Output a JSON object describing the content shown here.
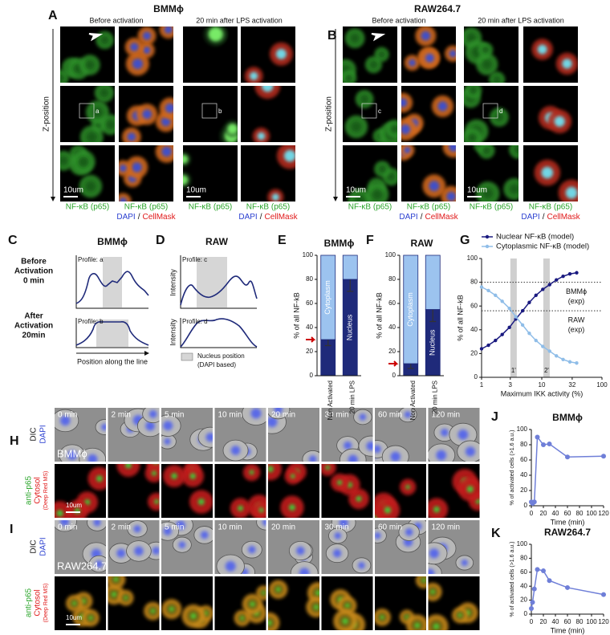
{
  "panel_labels": [
    "A",
    "B",
    "C",
    "D",
    "E",
    "F",
    "G",
    "H",
    "I",
    "J",
    "K"
  ],
  "microscopy": {
    "before": "Before activation",
    "after": "20 min after LPS activation",
    "z": "Z-position",
    "scale": "10um",
    "nfkb": "NF-κB (p65)",
    "dapi": "DAPI",
    "slash": "/",
    "cellmask": "CellMask"
  },
  "panel_a": {
    "title": "BMMϕ",
    "roi": [
      "a",
      "b"
    ]
  },
  "panel_b": {
    "title": "RAW264.7",
    "roi": [
      "c",
      "d"
    ]
  },
  "panel_c": {
    "title": "BMMϕ",
    "row1": [
      "Before",
      "Activation",
      "0 min"
    ],
    "row2": [
      "After",
      "Activation",
      "20min"
    ],
    "profiles": [
      "Profile: a",
      "Profile: b"
    ],
    "x_label": "Position along the line"
  },
  "panel_d": {
    "title": "RAW",
    "profiles": [
      "Profile: c",
      "Profile: d"
    ],
    "y_label": "Intensity",
    "legend": [
      "Nucleus position",
      "(DAPI based)"
    ]
  },
  "time_course": {
    "times": [
      "0 min",
      "2 min",
      "5 min",
      "10 min",
      "20 min",
      "30 min",
      "60 min",
      "120 min"
    ],
    "dic": "DIC",
    "dapi": "DAPI",
    "anti_p65": "anti-p65",
    "cytosol": "Cytosol",
    "deep_red": "(Deep Red MS)",
    "scale": "10um"
  },
  "panel_h": {
    "cell": "BMMϕ"
  },
  "panel_i": {
    "cell": "RAW264.7"
  },
  "chart_data": [
    {
      "type": "stacked_bar",
      "title": "BMMϕ",
      "y_label": "% of all NF-kB",
      "categories": [
        "Non Activated",
        "20 min LPS"
      ],
      "series": [
        {
          "name": "Nucleus",
          "color": "#1f2a7a",
          "values": [
            30,
            80
          ],
          "errors": [
            5,
            10
          ]
        },
        {
          "name": "Cytoplasm",
          "color": "#9cc3ef",
          "values": [
            70,
            20
          ]
        }
      ],
      "ylim": [
        0,
        100
      ],
      "yticks": [
        0,
        20,
        40,
        60,
        80,
        100
      ]
    },
    {
      "type": "stacked_bar",
      "title": "RAW",
      "y_label": "% of all NF-kB",
      "categories": [
        "Non Activated",
        "20 min LPS"
      ],
      "series": [
        {
          "name": "Nucleus",
          "color": "#1f2a7a",
          "values": [
            10,
            55
          ],
          "errors": [
            4,
            10
          ]
        },
        {
          "name": "Cytoplasm",
          "color": "#9cc3ef",
          "values": [
            90,
            45
          ]
        }
      ],
      "ylim": [
        0,
        100
      ],
      "yticks": [
        0,
        20,
        40,
        60,
        80,
        100
      ]
    },
    {
      "type": "line",
      "x_label": "Maximum IKK activity (%)",
      "y_label": "% of all NF-kB",
      "log_x": true,
      "markers": true,
      "legend": true,
      "x": [
        1,
        1.3,
        1.7,
        2.2,
        2.9,
        3.7,
        4.8,
        6.2,
        8,
        10.4,
        13.5,
        17.5,
        22.6,
        29.3,
        38
      ],
      "series": [
        {
          "name": "Nuclear NF-κB (model)",
          "color": "#1a1a80",
          "values": [
            24,
            27,
            31,
            36,
            42,
            49,
            56,
            63,
            69,
            74,
            78,
            82,
            85,
            87,
            88
          ]
        },
        {
          "name": "Cytoplasmic NF-κB (model)",
          "color": "#8fbde8",
          "values": [
            76,
            73,
            69,
            64,
            58,
            51,
            44,
            37,
            31,
            26,
            22,
            18,
            15,
            13,
            12
          ]
        }
      ],
      "reference_lines": [
        {
          "value": 80,
          "label": [
            "BMMϕ",
            "(exp)"
          ]
        },
        {
          "value": 56,
          "label": [
            "RAW",
            "(exp)"
          ]
        }
      ],
      "bands": [
        {
          "value": 3.4,
          "label": "1'"
        },
        {
          "value": 12,
          "label": "2'"
        }
      ],
      "xlim": [
        1,
        100
      ],
      "xticks": [
        1,
        3,
        10,
        32,
        100
      ],
      "ylim": [
        0,
        100
      ],
      "yticks": [
        0,
        20,
        40,
        60,
        80,
        100
      ]
    },
    {
      "type": "line",
      "title": "BMMϕ",
      "x_label": "Time (min)",
      "y_label": "% of activated cells (>1.6 a.u.)",
      "markers": true,
      "x": [
        0,
        2,
        5,
        10,
        20,
        30,
        60,
        120
      ],
      "values": [
        5,
        3,
        5,
        90,
        80,
        81,
        64,
        65
      ],
      "color": "#6f7fd8",
      "xlim": [
        0,
        120
      ],
      "xticks": [
        0,
        20,
        40,
        60,
        80,
        100,
        120
      ],
      "ylim": [
        0,
        100
      ],
      "yticks": [
        0,
        20,
        40,
        60,
        80,
        100
      ]
    },
    {
      "type": "line",
      "title": "RAW264.7",
      "x_label": "Time (min)",
      "y_label": "% of activated cells (>1.6 a.u.)",
      "markers": true,
      "x": [
        0,
        2,
        5,
        10,
        20,
        30,
        60,
        120
      ],
      "values": [
        8,
        17,
        36,
        64,
        62,
        48,
        38,
        28
      ],
      "color": "#6f7fd8",
      "xlim": [
        0,
        120
      ],
      "xticks": [
        0,
        20,
        40,
        60,
        80,
        100,
        120
      ],
      "ylim": [
        0,
        100
      ],
      "yticks": [
        0,
        20,
        40,
        60,
        80,
        100
      ]
    }
  ]
}
